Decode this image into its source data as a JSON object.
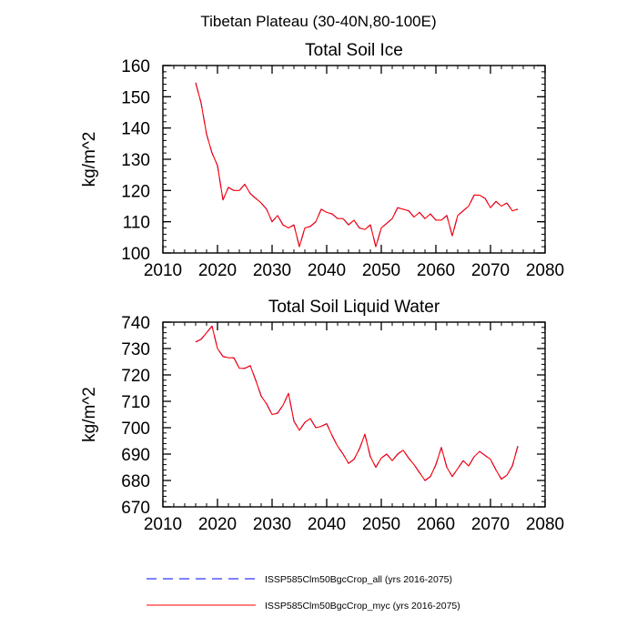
{
  "figure": {
    "title": "Tibetan Plateau (30-40N,80-100E)"
  },
  "chart_data": [
    {
      "type": "line",
      "title": "Total Soil Ice",
      "xlabel": "",
      "ylabel": "kg/m^2",
      "xlim": [
        2010,
        2080
      ],
      "ylim": [
        100,
        160
      ],
      "xticks": [
        2010,
        2020,
        2030,
        2040,
        2050,
        2060,
        2070,
        2080
      ],
      "yticks": [
        100,
        110,
        120,
        130,
        140,
        150,
        160
      ],
      "grid": false,
      "x": [
        2016,
        2017,
        2018,
        2019,
        2020,
        2021,
        2022,
        2023,
        2024,
        2025,
        2026,
        2027,
        2028,
        2029,
        2030,
        2031,
        2032,
        2033,
        2034,
        2035,
        2036,
        2037,
        2038,
        2039,
        2040,
        2041,
        2042,
        2043,
        2044,
        2045,
        2046,
        2047,
        2048,
        2049,
        2050,
        2051,
        2052,
        2053,
        2054,
        2055,
        2056,
        2057,
        2058,
        2059,
        2060,
        2061,
        2062,
        2063,
        2064,
        2065,
        2066,
        2067,
        2068,
        2069,
        2070,
        2071,
        2072,
        2073,
        2074,
        2075
      ],
      "series": [
        {
          "name": "ISSP585Clm50BgcCrop_all (yrs 2016-2075)",
          "color": "#0000ff",
          "dash": "dashed",
          "values": [
            154.5,
            148,
            138,
            132,
            128,
            117,
            121,
            120,
            120,
            122,
            119,
            117.5,
            116,
            114,
            110,
            112,
            109,
            108,
            109,
            102,
            108,
            108.5,
            110,
            114,
            113,
            112.5,
            111,
            111,
            109,
            110.5,
            108,
            107.5,
            109,
            102,
            108,
            109.5,
            111,
            114.5,
            114,
            113.5,
            111.5,
            113,
            111,
            112.5,
            110.5,
            110.5,
            112,
            105.5,
            112,
            113.5,
            115,
            118.5,
            118.5,
            117.5,
            114.5,
            116.5,
            115,
            116,
            113.5,
            114
          ]
        },
        {
          "name": "ISSP585Clm50BgcCrop_myc (yrs 2016-2075)",
          "color": "#ff0000",
          "dash": "solid",
          "values": [
            154.5,
            148,
            138,
            132,
            128,
            117,
            121,
            120,
            120,
            122,
            119,
            117.5,
            116,
            114,
            110,
            112,
            109,
            108,
            109,
            102,
            108,
            108.5,
            110,
            114,
            113,
            112.5,
            111,
            111,
            109,
            110.5,
            108,
            107.5,
            109,
            102,
            108,
            109.5,
            111,
            114.5,
            114,
            113.5,
            111.5,
            113,
            111,
            112.5,
            110.5,
            110.5,
            112,
            105.5,
            112,
            113.5,
            115,
            118.5,
            118.5,
            117.5,
            114.5,
            116.5,
            115,
            116,
            113.5,
            114
          ]
        }
      ]
    },
    {
      "type": "line",
      "title": "Total Soil Liquid Water",
      "xlabel": "",
      "ylabel": "kg/m^2",
      "xlim": [
        2010,
        2080
      ],
      "ylim": [
        670,
        740
      ],
      "xticks": [
        2010,
        2020,
        2030,
        2040,
        2050,
        2060,
        2070,
        2080
      ],
      "yticks": [
        670,
        680,
        690,
        700,
        710,
        720,
        730,
        740
      ],
      "grid": false,
      "x": [
        2016,
        2017,
        2018,
        2019,
        2020,
        2021,
        2022,
        2023,
        2024,
        2025,
        2026,
        2027,
        2028,
        2029,
        2030,
        2031,
        2032,
        2033,
        2034,
        2035,
        2036,
        2037,
        2038,
        2039,
        2040,
        2041,
        2042,
        2043,
        2044,
        2045,
        2046,
        2047,
        2048,
        2049,
        2050,
        2051,
        2052,
        2053,
        2054,
        2055,
        2056,
        2057,
        2058,
        2059,
        2060,
        2061,
        2062,
        2063,
        2064,
        2065,
        2066,
        2067,
        2068,
        2069,
        2070,
        2071,
        2072,
        2073,
        2074,
        2075
      ],
      "series": [
        {
          "name": "ISSP585Clm50BgcCrop_all (yrs 2016-2075)",
          "color": "#0000ff",
          "dash": "dashed",
          "values": [
            732.5,
            733.5,
            736,
            738.5,
            730,
            727,
            726.5,
            726.5,
            722.5,
            722.5,
            723.5,
            718,
            712,
            709,
            705,
            705.5,
            708.5,
            713,
            702.5,
            699,
            702,
            703.5,
            700,
            700.5,
            701.5,
            697,
            693,
            690,
            686.5,
            688,
            692,
            697.5,
            689,
            685,
            688.5,
            690,
            687.5,
            690,
            691.5,
            688.5,
            686,
            683,
            680,
            681.5,
            686,
            692.5,
            685,
            681.5,
            684.5,
            687.5,
            685.5,
            689,
            691,
            689.5,
            688,
            684,
            680.5,
            682,
            685.5,
            693
          ]
        },
        {
          "name": "ISSP585Clm50BgcCrop_myc (yrs 2016-2075)",
          "color": "#ff0000",
          "dash": "solid",
          "values": [
            732.5,
            733.5,
            736,
            738.5,
            730,
            727,
            726.5,
            726.5,
            722.5,
            722.5,
            723.5,
            718,
            712,
            709,
            705,
            705.5,
            708.5,
            713,
            702.5,
            699,
            702,
            703.5,
            700,
            700.5,
            701.5,
            697,
            693,
            690,
            686.5,
            688,
            692,
            697.5,
            689,
            685,
            688.5,
            690,
            687.5,
            690,
            691.5,
            688.5,
            686,
            683,
            680,
            681.5,
            686,
            692.5,
            685,
            681.5,
            684.5,
            687.5,
            685.5,
            689,
            691,
            689.5,
            688,
            684,
            680.5,
            682,
            685.5,
            693
          ]
        }
      ]
    }
  ]
}
